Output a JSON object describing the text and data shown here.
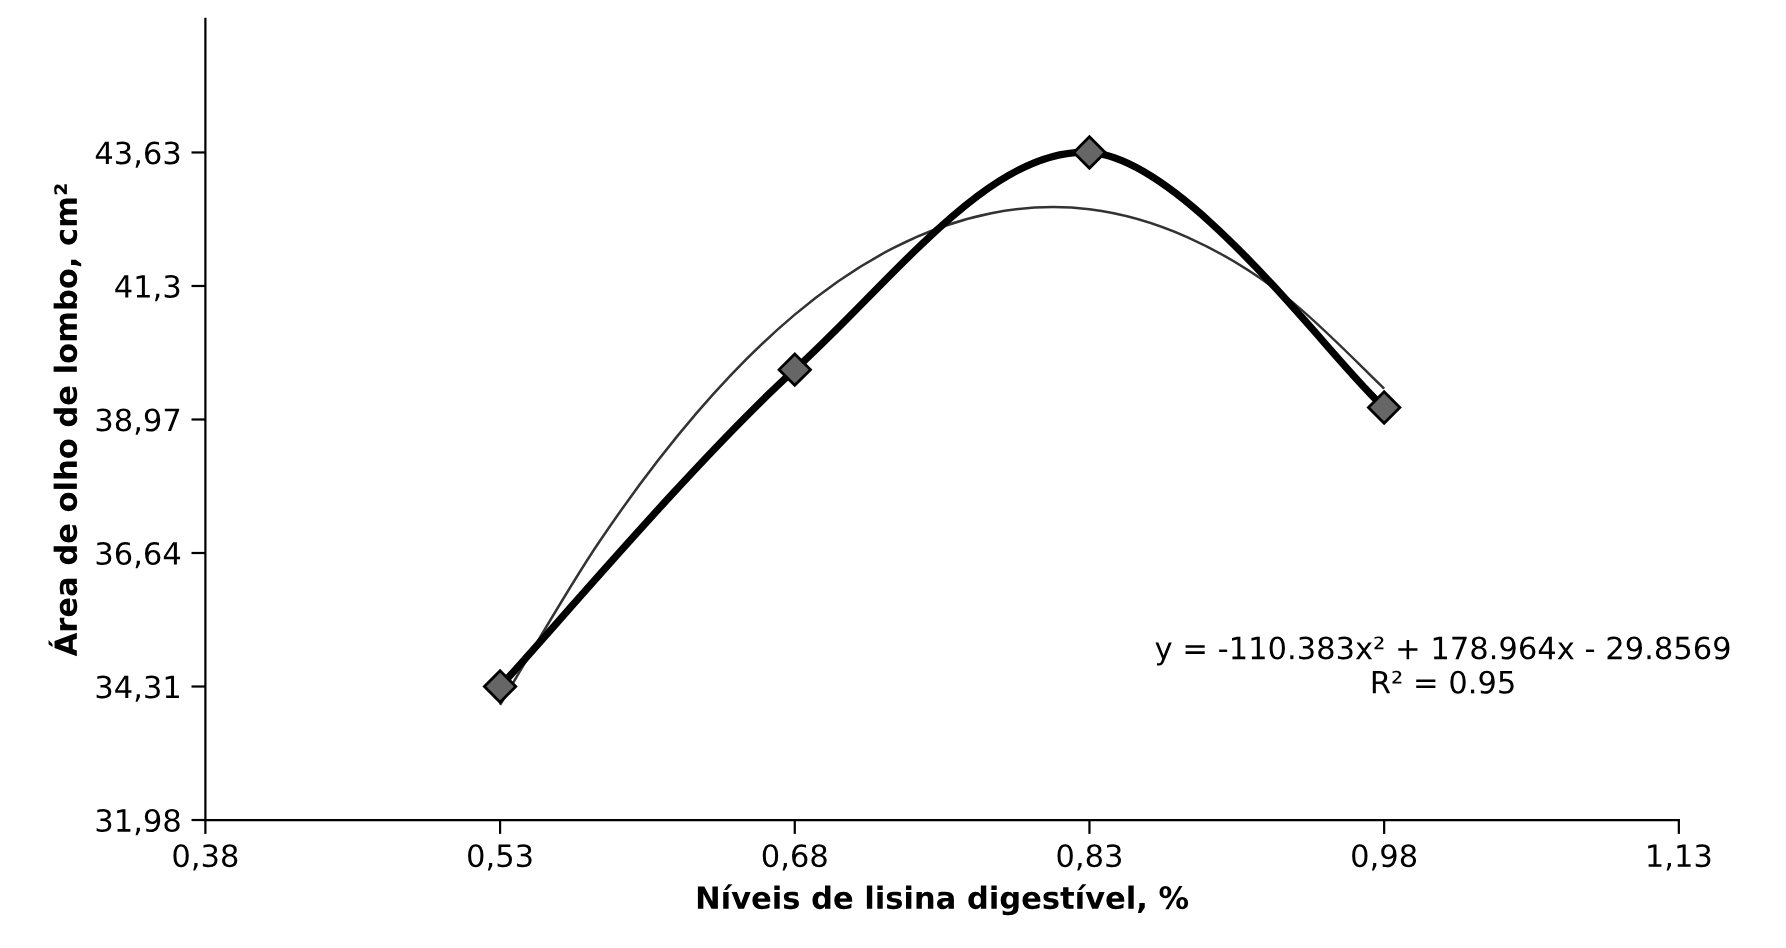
{
  "chart_data": {
    "type": "line",
    "xlabel": "Níveis de lisina digestível, %",
    "ylabel": "Área de olho de lombo, cm²",
    "xlim": [
      0.38,
      1.13
    ],
    "ylim": [
      31.98,
      45.96
    ],
    "xticks": [
      {
        "value": 0.38,
        "label": "0,38"
      },
      {
        "value": 0.53,
        "label": "0,53"
      },
      {
        "value": 0.68,
        "label": "0,68"
      },
      {
        "value": 0.83,
        "label": "0,83"
      },
      {
        "value": 0.98,
        "label": "0,98"
      },
      {
        "value": 1.13,
        "label": "1,13"
      }
    ],
    "yticks": [
      {
        "value": 31.98,
        "label": "31,98"
      },
      {
        "value": 34.31,
        "label": "34,31"
      },
      {
        "value": 36.64,
        "label": "36,64"
      },
      {
        "value": 38.97,
        "label": "38,97"
      },
      {
        "value": 41.3,
        "label": "41,3"
      },
      {
        "value": 43.63,
        "label": "43,63"
      }
    ],
    "grid": false,
    "legend": false,
    "series": [
      {
        "color": "#000000",
        "marker": "diamond",
        "line_style": "solid",
        "x": [
          0.53,
          0.68,
          0.83,
          0.98
        ],
        "values": [
          34.31,
          39.84,
          43.63,
          39.18
        ]
      },
      {
        "color": "#333333",
        "marker": "none",
        "line_style": "solid",
        "x": [
          0.53,
          0.58,
          0.63,
          0.68,
          0.73,
          0.78,
          0.83,
          0.88,
          0.93,
          0.98
        ],
        "values": [
          33.99,
          36.81,
          39.08,
          40.8,
          41.96,
          42.57,
          42.64,
          42.15,
          41.11,
          39.51
        ]
      }
    ],
    "annotations": [
      "y = -110.383x² + 178.964x - 29.8569\nR² = 0.95"
    ]
  }
}
